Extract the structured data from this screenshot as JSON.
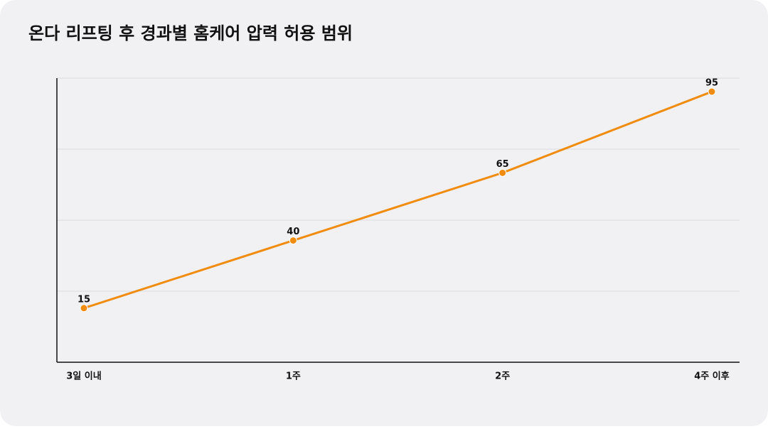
{
  "chart_data": {
    "type": "line",
    "title": "온다 리프팅 후 경과별 홈케어 압력 허용 범위",
    "categories": [
      "3일 이내",
      "1주",
      "2주",
      "4주 이후"
    ],
    "series": [
      {
        "name": "압력 허용 범위",
        "color": "#f08c10",
        "values": [
          15,
          40,
          65,
          95
        ]
      }
    ],
    "ylim": [
      -5,
      100
    ],
    "yticks": [
      21.25,
      47.5,
      73.75,
      100
    ],
    "grid": true
  }
}
